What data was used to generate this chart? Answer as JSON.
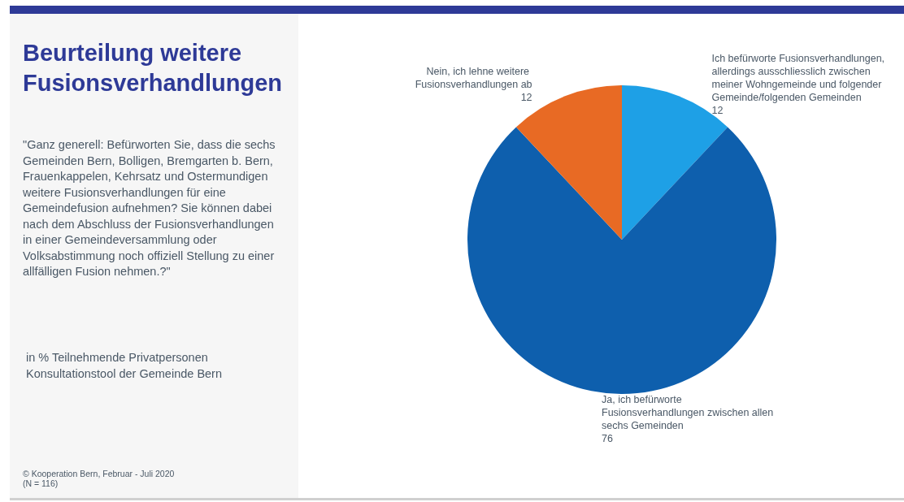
{
  "chart_data": {
    "type": "pie",
    "title": "Beurteilung weitere Fusionsverhandlungen",
    "subtitle": "\"Ganz generell: Befürworten Sie, dass die sechs Gemeinden Bern, Bolligen, Bremgarten b. Bern, Frauenkappelen, Kehrsatz und Ostermundigen weitere Fusionsverhandlungen für eine Gemeindefusion aufnehmen? Sie können dabei nach dem Abschluss der Fusionsverhandlungen in einer Gemeindeversammlung oder Volksabstimmung noch offiziell Stellung zu einer allfälligen Fusion nehmen.?\"",
    "categories": [
      "Ich befürworte Fusionsverhandlungen, allerdings ausschliesslich zwischen meiner Wohngemeinde und folgender Gemeinde/folgenden Gemeinden",
      "Ja, ich befürworte Fusionsverhandlungen zwischen allen sechs Gemeinden",
      "Nein, ich lehne weitere Fusionsverhandlungen ab"
    ],
    "values": [
      12,
      76,
      12
    ],
    "colors": [
      "#1ea0e6",
      "#0e5fad",
      "#e86a24"
    ],
    "data_labels": true,
    "legend": false,
    "annotations": [
      "in % Teilnehmende Privatpersonen",
      "Konsultationstool der Gemeinde Bern",
      "© Kooperation Bern, Februar - Juli 2020",
      "(N = 116)"
    ]
  }
}
